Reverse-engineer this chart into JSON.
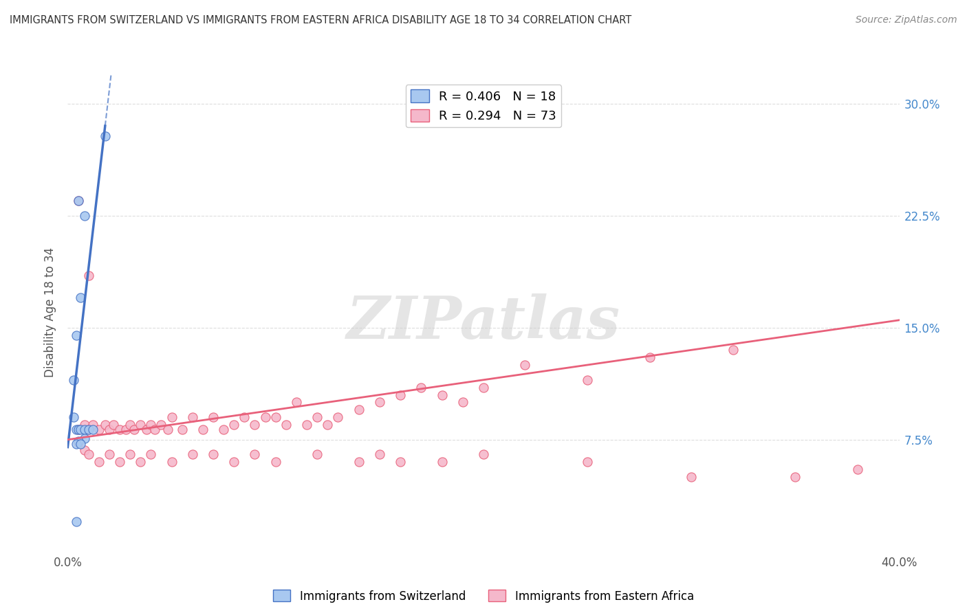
{
  "title": "IMMIGRANTS FROM SWITZERLAND VS IMMIGRANTS FROM EASTERN AFRICA DISABILITY AGE 18 TO 34 CORRELATION CHART",
  "source": "Source: ZipAtlas.com",
  "ylabel": "Disability Age 18 to 34",
  "xlim": [
    0.0,
    0.4
  ],
  "ylim": [
    0.0,
    0.32
  ],
  "xticks": [
    0.0,
    0.4
  ],
  "xticklabels": [
    "0.0%",
    "40.0%"
  ],
  "yticks": [
    0.075,
    0.15,
    0.225,
    0.3
  ],
  "yticklabels": [
    "7.5%",
    "15.0%",
    "22.5%",
    "30.0%"
  ],
  "swiss_color": "#a8c8f0",
  "eastern_africa_color": "#f5b8cb",
  "swiss_line_color": "#4472c4",
  "eastern_africa_line_color": "#e8607a",
  "swiss_R": 0.406,
  "swiss_N": 18,
  "eastern_africa_R": 0.294,
  "eastern_africa_N": 73,
  "watermark_text": "ZIPatlas",
  "swiss_scatter_x": [
    0.018,
    0.005,
    0.008,
    0.006,
    0.004,
    0.003,
    0.003,
    0.004,
    0.005,
    0.006,
    0.008,
    0.01,
    0.012,
    0.008,
    0.005,
    0.004,
    0.006,
    0.004
  ],
  "swiss_scatter_y": [
    0.278,
    0.235,
    0.225,
    0.17,
    0.145,
    0.115,
    0.09,
    0.082,
    0.082,
    0.082,
    0.082,
    0.082,
    0.082,
    0.076,
    0.074,
    0.072,
    0.072,
    0.02
  ],
  "ea_scatter_x": [
    0.005,
    0.008,
    0.01,
    0.012,
    0.015,
    0.018,
    0.02,
    0.022,
    0.025,
    0.028,
    0.03,
    0.032,
    0.035,
    0.038,
    0.04,
    0.042,
    0.045,
    0.048,
    0.05,
    0.055,
    0.06,
    0.065,
    0.07,
    0.075,
    0.08,
    0.085,
    0.09,
    0.095,
    0.1,
    0.105,
    0.11,
    0.115,
    0.12,
    0.125,
    0.13,
    0.14,
    0.15,
    0.16,
    0.17,
    0.18,
    0.19,
    0.2,
    0.22,
    0.25,
    0.28,
    0.32,
    0.005,
    0.008,
    0.01,
    0.015,
    0.02,
    0.025,
    0.03,
    0.035,
    0.04,
    0.05,
    0.06,
    0.07,
    0.08,
    0.09,
    0.1,
    0.12,
    0.14,
    0.15,
    0.16,
    0.18,
    0.2,
    0.25,
    0.3,
    0.35,
    0.38,
    0.005,
    0.01
  ],
  "ea_scatter_y": [
    0.082,
    0.085,
    0.082,
    0.085,
    0.082,
    0.085,
    0.082,
    0.085,
    0.082,
    0.082,
    0.085,
    0.082,
    0.085,
    0.082,
    0.085,
    0.082,
    0.085,
    0.082,
    0.09,
    0.082,
    0.09,
    0.082,
    0.09,
    0.082,
    0.085,
    0.09,
    0.085,
    0.09,
    0.09,
    0.085,
    0.1,
    0.085,
    0.09,
    0.085,
    0.09,
    0.095,
    0.1,
    0.105,
    0.11,
    0.105,
    0.1,
    0.11,
    0.125,
    0.115,
    0.13,
    0.135,
    0.073,
    0.068,
    0.065,
    0.06,
    0.065,
    0.06,
    0.065,
    0.06,
    0.065,
    0.06,
    0.065,
    0.065,
    0.06,
    0.065,
    0.06,
    0.065,
    0.06,
    0.065,
    0.06,
    0.06,
    0.065,
    0.06,
    0.05,
    0.05,
    0.055,
    0.235,
    0.185
  ],
  "background_color": "#ffffff",
  "grid_color": "#dddddd"
}
